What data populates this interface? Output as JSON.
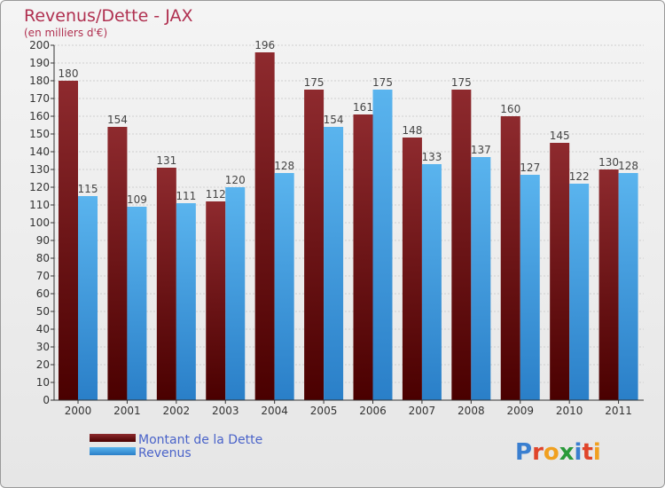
{
  "chart_data": {
    "type": "bar",
    "title": "Revenus/Dette - JAX",
    "subtitle": "(en milliers d'€)",
    "categories": [
      "2000",
      "2001",
      "2002",
      "2003",
      "2004",
      "2005",
      "2006",
      "2007",
      "2008",
      "2009",
      "2010",
      "2011"
    ],
    "series": [
      {
        "name": "Montant de la Dette",
        "values": [
          180,
          154,
          131,
          112,
          196,
          175,
          161,
          148,
          175,
          160,
          145,
          130
        ],
        "color": "#7a1c20"
      },
      {
        "name": "Revenus",
        "values": [
          115,
          109,
          111,
          120,
          128,
          154,
          175,
          133,
          137,
          127,
          122,
          128
        ],
        "color": "#4aa3e4"
      }
    ],
    "ylim": [
      0,
      200
    ],
    "ytick_step": 10,
    "grid": true,
    "legend": "bottom-left"
  },
  "logo": {
    "text": "Proxiti"
  }
}
